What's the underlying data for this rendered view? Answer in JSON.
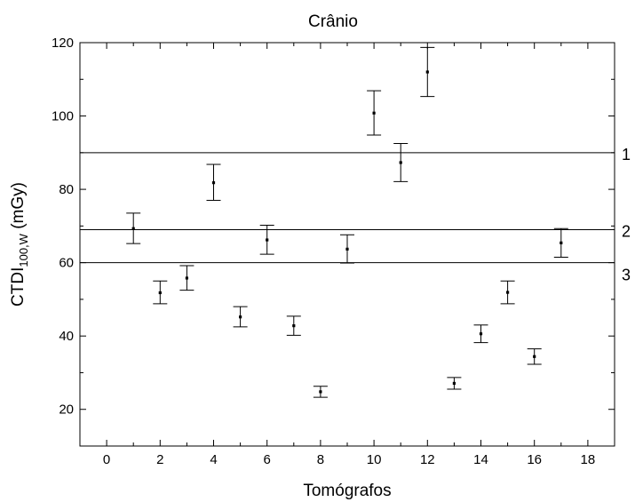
{
  "chart_data": {
    "type": "scatter",
    "title": "Crânio",
    "xlabel": "Tomógrafos",
    "ylabel": {
      "main": "CTDI",
      "sub": "100,W",
      "unit": " (mGy)"
    },
    "xlim": [
      -1,
      19
    ],
    "ylim": [
      10,
      120
    ],
    "xticks": [
      0,
      2,
      4,
      6,
      8,
      10,
      12,
      14,
      16,
      18
    ],
    "yticks": [
      20,
      40,
      60,
      80,
      100,
      120
    ],
    "grid": false,
    "series": [
      {
        "points": [
          {
            "x": 1,
            "y": 69.3,
            "lo": 65.2,
            "hi": 73.5
          },
          {
            "x": 2,
            "y": 51.8,
            "lo": 48.8,
            "hi": 55.0
          },
          {
            "x": 3,
            "y": 55.8,
            "lo": 52.5,
            "hi": 59.2
          },
          {
            "x": 4,
            "y": 81.8,
            "lo": 77.0,
            "hi": 86.8
          },
          {
            "x": 5,
            "y": 45.2,
            "lo": 42.5,
            "hi": 48.0
          },
          {
            "x": 6,
            "y": 66.2,
            "lo": 62.3,
            "hi": 70.2
          },
          {
            "x": 7,
            "y": 42.8,
            "lo": 40.2,
            "hi": 45.4
          },
          {
            "x": 8,
            "y": 24.8,
            "lo": 23.3,
            "hi": 26.3
          },
          {
            "x": 9,
            "y": 63.7,
            "lo": 59.9,
            "hi": 67.6
          },
          {
            "x": 10,
            "y": 100.8,
            "lo": 94.8,
            "hi": 106.9
          },
          {
            "x": 11,
            "y": 87.3,
            "lo": 82.1,
            "hi": 92.5
          },
          {
            "x": 12,
            "y": 112.0,
            "lo": 105.3,
            "hi": 118.7
          },
          {
            "x": 13,
            "y": 27.1,
            "lo": 25.5,
            "hi": 28.7
          },
          {
            "x": 14,
            "y": 40.6,
            "lo": 38.2,
            "hi": 43.0
          },
          {
            "x": 15,
            "y": 51.9,
            "lo": 48.8,
            "hi": 55.0
          },
          {
            "x": 16,
            "y": 34.4,
            "lo": 32.3,
            "hi": 36.5
          },
          {
            "x": 17,
            "y": 65.4,
            "lo": 61.5,
            "hi": 69.3
          }
        ]
      }
    ],
    "reference_lines": [
      {
        "y": 90,
        "label": "1"
      },
      {
        "y": 69,
        "label": "2"
      },
      {
        "y": 60,
        "label": "3"
      }
    ]
  }
}
